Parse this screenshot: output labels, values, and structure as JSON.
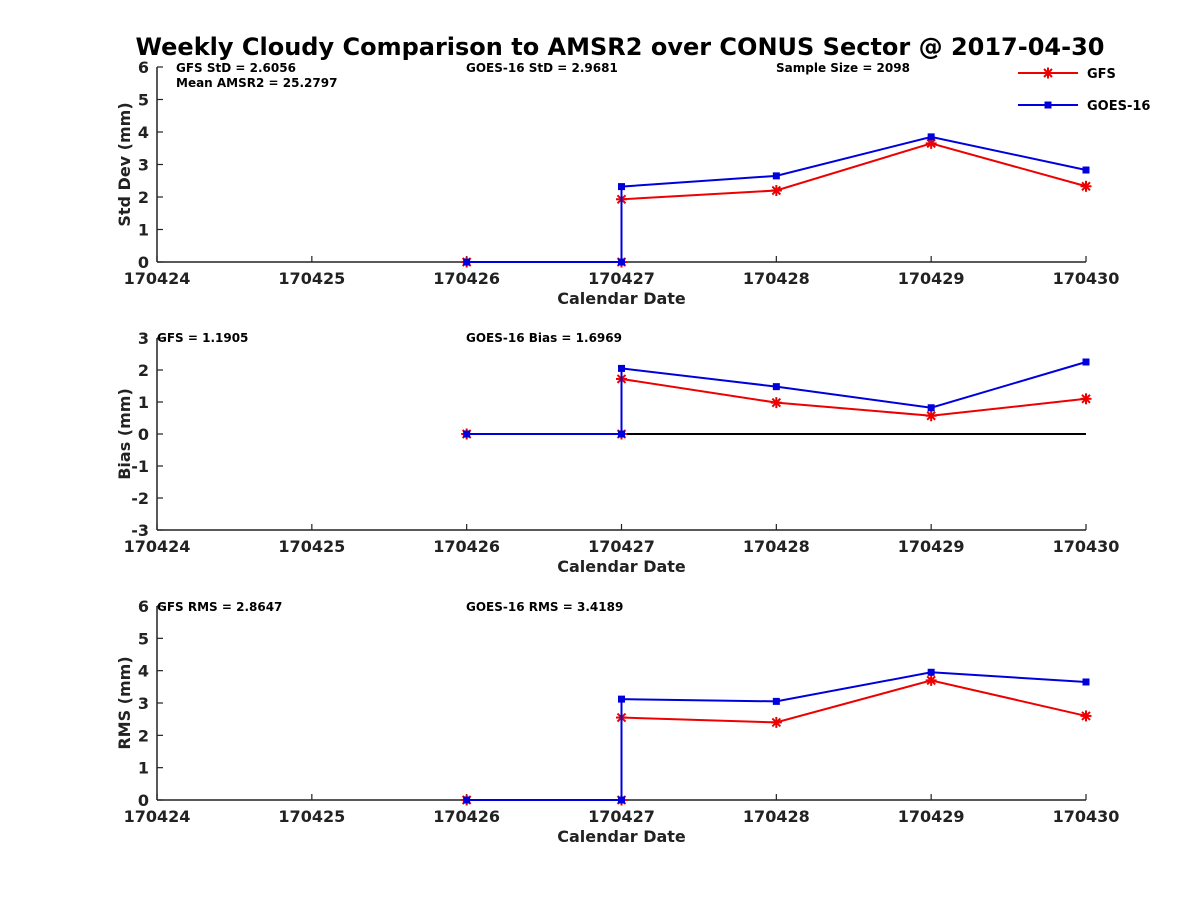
{
  "title": "Weekly Cloudy Comparison to AMSR2 over CONUS Sector @ 2017-04-30",
  "legend": [
    {
      "label": "GFS",
      "color": "#ee0000",
      "marker": "asterisk"
    },
    {
      "label": "GOES-16",
      "color": "#0000dd",
      "marker": "square"
    }
  ],
  "chart_data": [
    {
      "type": "line",
      "x": [
        170426,
        170427,
        170427,
        170428,
        170429,
        170430
      ],
      "xticks": [
        "170424",
        "170425",
        "170426",
        "170427",
        "170428",
        "170429",
        "170430"
      ],
      "xlim": [
        170424,
        170430
      ],
      "ylim": [
        0,
        6
      ],
      "yticks": [
        "0",
        "1",
        "2",
        "3",
        "4",
        "5",
        "6"
      ],
      "xlabel": "Calendar Date",
      "ylabel": "Std Dev (mm)",
      "zero_line": false,
      "annotations": [
        "GFS StD = 2.6056",
        "Mean AMSR2 = 25.2797",
        "GOES-16 StD = 2.9681",
        "Sample Size = 2098"
      ],
      "series": [
        {
          "name": "GFS",
          "color": "#ee0000",
          "marker": "asterisk",
          "values": [
            0,
            0,
            1.93,
            2.2,
            3.65,
            2.33
          ]
        },
        {
          "name": "GOES-16",
          "color": "#0000dd",
          "marker": "square",
          "values": [
            0,
            0,
            2.32,
            2.65,
            3.85,
            2.83
          ]
        }
      ]
    },
    {
      "type": "line",
      "x": [
        170426,
        170427,
        170427,
        170428,
        170429,
        170430
      ],
      "xticks": [
        "170424",
        "170425",
        "170426",
        "170427",
        "170428",
        "170429",
        "170430"
      ],
      "xlim": [
        170424,
        170430
      ],
      "ylim": [
        -3,
        3
      ],
      "yticks": [
        "-3",
        "-2",
        "-1",
        "0",
        "1",
        "2",
        "3"
      ],
      "xlabel": "Calendar Date",
      "ylabel": "Bias (mm)",
      "zero_line": true,
      "annotations": [
        "GFS = 1.1905",
        "GOES-16 Bias  = 1.6969"
      ],
      "series": [
        {
          "name": "GFS",
          "color": "#ee0000",
          "marker": "asterisk",
          "values": [
            0,
            0,
            1.72,
            0.98,
            0.57,
            1.1
          ]
        },
        {
          "name": "GOES-16",
          "color": "#0000dd",
          "marker": "square",
          "values": [
            0,
            0,
            2.05,
            1.48,
            0.82,
            2.25
          ]
        }
      ]
    },
    {
      "type": "line",
      "x": [
        170426,
        170427,
        170427,
        170428,
        170429,
        170430
      ],
      "xticks": [
        "170424",
        "170425",
        "170426",
        "170427",
        "170428",
        "170429",
        "170430"
      ],
      "xlim": [
        170424,
        170430
      ],
      "ylim": [
        0,
        6
      ],
      "yticks": [
        "0",
        "1",
        "2",
        "3",
        "4",
        "5",
        "6"
      ],
      "xlabel": "Calendar Date",
      "ylabel": "RMS (mm)",
      "zero_line": false,
      "annotations": [
        "GFS RMS = 2.8647",
        "GOES-16 RMS = 3.4189"
      ],
      "series": [
        {
          "name": "GFS",
          "color": "#ee0000",
          "marker": "asterisk",
          "values": [
            0,
            0,
            2.55,
            2.4,
            3.7,
            2.6
          ]
        },
        {
          "name": "GOES-16",
          "color": "#0000dd",
          "marker": "square",
          "values": [
            0,
            0,
            3.12,
            3.05,
            3.95,
            3.65
          ]
        }
      ]
    }
  ]
}
